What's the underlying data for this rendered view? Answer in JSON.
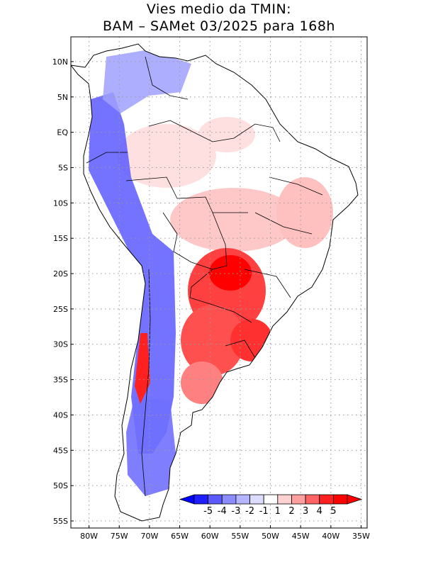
{
  "title": {
    "line1": "Vies medio da TMIN:",
    "line2": "BAM – SAMet 03/2025  para 168h"
  },
  "map": {
    "lon_range": [
      -83,
      -34
    ],
    "lat_range": [
      -56,
      13.5
    ],
    "lon_ticks": [
      {
        "value": -80,
        "label": "80W"
      },
      {
        "value": -75,
        "label": "75W"
      },
      {
        "value": -70,
        "label": "70W"
      },
      {
        "value": -65,
        "label": "65W"
      },
      {
        "value": -60,
        "label": "60W"
      },
      {
        "value": -55,
        "label": "55W"
      },
      {
        "value": -50,
        "label": "50W"
      },
      {
        "value": -45,
        "label": "45W"
      },
      {
        "value": -40,
        "label": "40W"
      },
      {
        "value": -35,
        "label": "35W"
      }
    ],
    "lat_ticks": [
      {
        "value": 10,
        "label": "10N"
      },
      {
        "value": 5,
        "label": "5N"
      },
      {
        "value": 0,
        "label": "EQ"
      },
      {
        "value": -5,
        "label": "5S"
      },
      {
        "value": -10,
        "label": "10S"
      },
      {
        "value": -15,
        "label": "15S"
      },
      {
        "value": -20,
        "label": "20S"
      },
      {
        "value": -25,
        "label": "25S"
      },
      {
        "value": -30,
        "label": "30S"
      },
      {
        "value": -35,
        "label": "35S"
      },
      {
        "value": -40,
        "label": "40S"
      },
      {
        "value": -45,
        "label": "45S"
      },
      {
        "value": -50,
        "label": "50S"
      },
      {
        "value": -55,
        "label": "55S"
      }
    ]
  },
  "colorbar": {
    "labels": [
      "-5",
      "-4",
      "-3",
      "-2",
      "-1",
      "1",
      "2",
      "3",
      "4",
      "5"
    ],
    "colors": [
      "#1e1eff",
      "#5a5aff",
      "#8c8cff",
      "#b4b4ff",
      "#dcdcff",
      "#ffffff",
      "#ffd2d2",
      "#ffa0a0",
      "#ff6464",
      "#ff2020",
      "#ff0000"
    ],
    "min_color": "#0000ff",
    "max_color": "#ff0000"
  },
  "colors": {
    "land": "#ffffff",
    "border": "#000000",
    "grid": "#999999"
  }
}
